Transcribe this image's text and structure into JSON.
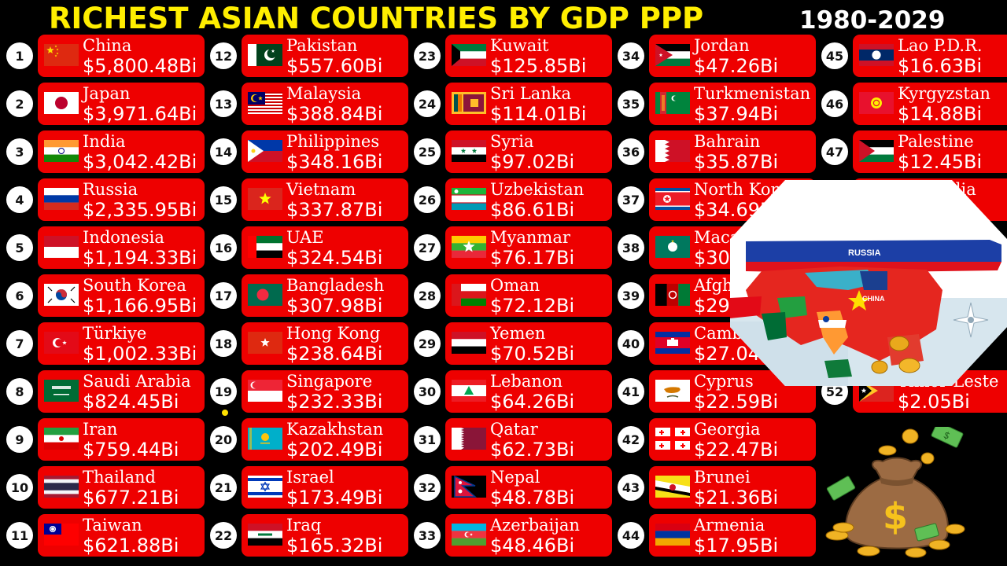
{
  "title": "RICHEST ASIAN COUNTRIES BY GDP PPP",
  "years": "1980-2029",
  "colors": {
    "card": "#ee0000",
    "title": "#ffee00",
    "background": "#000000"
  },
  "entries": [
    {
      "rank": "1",
      "name": "China",
      "value": "$5,800.48Bi",
      "flag": "china"
    },
    {
      "rank": "2",
      "name": "Japan",
      "value": "$3,971.64Bi",
      "flag": "japan"
    },
    {
      "rank": "3",
      "name": "India",
      "value": "$3,042.42Bi",
      "flag": "india"
    },
    {
      "rank": "4",
      "name": "Russia",
      "value": "$2,335.95Bi",
      "flag": "russia"
    },
    {
      "rank": "5",
      "name": "Indonesia",
      "value": "$1,194.33Bi",
      "flag": "indonesia"
    },
    {
      "rank": "6",
      "name": "South Korea",
      "value": "$1,166.95Bi",
      "flag": "south-korea"
    },
    {
      "rank": "7",
      "name": "Türkiye",
      "value": "$1,002.33Bi",
      "flag": "turkiye"
    },
    {
      "rank": "8",
      "name": "Saudi Arabia",
      "value": "$824.45Bi",
      "flag": "saudi-arabia"
    },
    {
      "rank": "9",
      "name": "Iran",
      "value": "$759.44Bi",
      "flag": "iran"
    },
    {
      "rank": "10",
      "name": "Thailand",
      "value": "$677.21Bi",
      "flag": "thailand"
    },
    {
      "rank": "11",
      "name": "Taiwan",
      "value": "$621.88Bi",
      "flag": "taiwan"
    },
    {
      "rank": "12",
      "name": "Pakistan",
      "value": "$557.60Bi",
      "flag": "pakistan"
    },
    {
      "rank": "13",
      "name": "Malaysia",
      "value": "$388.84Bi",
      "flag": "malaysia"
    },
    {
      "rank": "14",
      "name": "Philippines",
      "value": "$348.16Bi",
      "flag": "philippines"
    },
    {
      "rank": "15",
      "name": "Vietnam",
      "value": "$337.87Bi",
      "flag": "vietnam"
    },
    {
      "rank": "16",
      "name": "UAE",
      "value": "$324.54Bi",
      "flag": "uae"
    },
    {
      "rank": "17",
      "name": "Bangladesh",
      "value": "$307.98Bi",
      "flag": "bangladesh"
    },
    {
      "rank": "18",
      "name": "Hong Kong",
      "value": "$238.64Bi",
      "flag": "hong-kong"
    },
    {
      "rank": "19",
      "name": "Singapore",
      "value": "$232.33Bi",
      "flag": "singapore"
    },
    {
      "rank": "20",
      "name": "Kazakhstan",
      "value": "$202.49Bi",
      "flag": "kazakhstan"
    },
    {
      "rank": "21",
      "name": "Israel",
      "value": "$173.49Bi",
      "flag": "israel"
    },
    {
      "rank": "22",
      "name": "Iraq",
      "value": "$165.32Bi",
      "flag": "iraq"
    },
    {
      "rank": "23",
      "name": "Kuwait",
      "value": "$125.85Bi",
      "flag": "kuwait"
    },
    {
      "rank": "24",
      "name": "Sri Lanka",
      "value": "$114.01Bi",
      "flag": "sri-lanka"
    },
    {
      "rank": "25",
      "name": "Syria",
      "value": "$97.02Bi",
      "flag": "syria"
    },
    {
      "rank": "26",
      "name": "Uzbekistan",
      "value": "$86.61Bi",
      "flag": "uzbekistan"
    },
    {
      "rank": "27",
      "name": "Myanmar",
      "value": "$76.17Bi",
      "flag": "myanmar"
    },
    {
      "rank": "28",
      "name": "Oman",
      "value": "$72.12Bi",
      "flag": "oman"
    },
    {
      "rank": "29",
      "name": "Yemen",
      "value": "$70.52Bi",
      "flag": "yemen"
    },
    {
      "rank": "30",
      "name": "Lebanon",
      "value": "$64.26Bi",
      "flag": "lebanon"
    },
    {
      "rank": "31",
      "name": "Qatar",
      "value": "$62.73Bi",
      "flag": "qatar"
    },
    {
      "rank": "32",
      "name": "Nepal",
      "value": "$48.78Bi",
      "flag": "nepal"
    },
    {
      "rank": "33",
      "name": "Azerbaijan",
      "value": "$48.46Bi",
      "flag": "azerbaijan"
    },
    {
      "rank": "34",
      "name": "Jordan",
      "value": "$47.26Bi",
      "flag": "jordan"
    },
    {
      "rank": "35",
      "name": "Turkmenistan",
      "value": "$37.94Bi",
      "flag": "turkmenistan"
    },
    {
      "rank": "36",
      "name": "Bahrain",
      "value": "$35.87Bi",
      "flag": "bahrain"
    },
    {
      "rank": "37",
      "name": "North Korea",
      "value": "$34.69Bi",
      "flag": "north-korea"
    },
    {
      "rank": "38",
      "name": "Macao",
      "value": "$30.2",
      "flag": "macao"
    },
    {
      "rank": "39",
      "name": "Afgh",
      "value": "$29.7",
      "flag": "afghanistan"
    },
    {
      "rank": "40",
      "name": "Camboc",
      "value": "$27.04Bi",
      "flag": "cambodia"
    },
    {
      "rank": "41",
      "name": "Cyprus",
      "value": "$22.59Bi",
      "flag": "cyprus"
    },
    {
      "rank": "42",
      "name": "Georgia",
      "value": "$22.47Bi",
      "flag": "georgia"
    },
    {
      "rank": "43",
      "name": "Brunei",
      "value": "$21.36Bi",
      "flag": "brunei"
    },
    {
      "rank": "44",
      "name": "Armenia",
      "value": "$17.95Bi",
      "flag": "armenia"
    },
    {
      "rank": "45",
      "name": "Lao P.D.R.",
      "value": "$16.63Bi",
      "flag": "laos"
    },
    {
      "rank": "46",
      "name": "Kyrgyzstan",
      "value": "$14.88Bi",
      "flag": "kyrgyzstan"
    },
    {
      "rank": "47",
      "name": "Palestine",
      "value": "$12.45Bi",
      "flag": "palestine"
    },
    {
      "rank": "48",
      "name": "Mongolia",
      "value": "Bi",
      "flag": "mongolia"
    },
    {
      "rank": "52",
      "name": "Timor-Leste",
      "value": "$2.05Bi",
      "flag": "timor-leste"
    }
  ],
  "map": {
    "labels": [
      "RUSSIA",
      "CHINA"
    ],
    "icon": "asia-map-icon"
  },
  "decor": {
    "icon": "money-bag-icon",
    "symbol": "$"
  }
}
